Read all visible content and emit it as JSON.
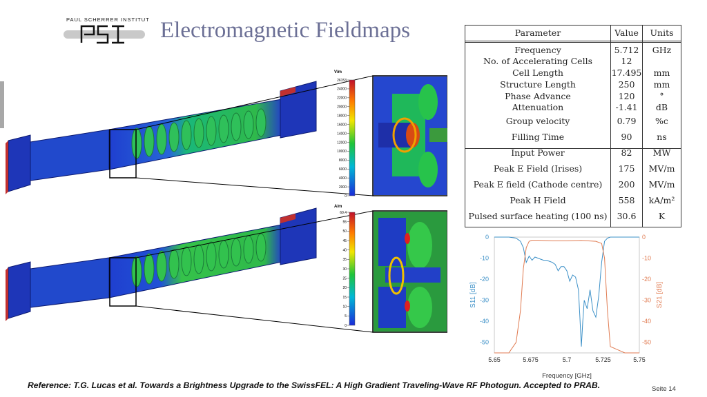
{
  "logo": {
    "institute": "PAUL SCHERRER INSTITUT",
    "mark": "PSI"
  },
  "title": "Electromagnetic Fieldmaps",
  "table": {
    "headers": {
      "parameter": "Parameter",
      "value": "Value",
      "units": "Units"
    },
    "rows": [
      {
        "parameter": "Frequency",
        "value": "5.712",
        "units": "GHz"
      },
      {
        "parameter": "No. of Accelerating Cells",
        "value": "12",
        "units": ""
      },
      {
        "parameter": "Cell Length",
        "value": "17.495",
        "units": "mm"
      },
      {
        "parameter": "Structure Length",
        "value": "250",
        "units": "mm"
      },
      {
        "parameter": "Phase Advance",
        "value": "120",
        "units": "°"
      },
      {
        "parameter": "Attenuation",
        "value": "-1.41",
        "units": "dB"
      },
      {
        "parameter": "Group velocity",
        "value": "0.79",
        "units": "%c"
      },
      {
        "parameter": "Filling Time",
        "value": "90",
        "units": "ns"
      },
      {
        "parameter": "Input Power",
        "value": "82",
        "units": "MW"
      },
      {
        "parameter": "Peak E Field (Irises)",
        "value": "175",
        "units": "MV/m"
      },
      {
        "parameter": "Peak E field (Cathode centre)",
        "value": "200",
        "units": "MV/m"
      },
      {
        "parameter": "Peak H Field",
        "value": "558",
        "units": "kA/m²"
      },
      {
        "parameter": "Pulsed surface heating (100 ns)",
        "value": "30.6",
        "units": "K"
      }
    ]
  },
  "efield_colorbar": {
    "unit": "V/m",
    "ticks": [
      "26153",
      "24000",
      "22000",
      "20000",
      "18000",
      "16000",
      "14000",
      "12000",
      "10000",
      "8000",
      "6000",
      "4000",
      "2000",
      "0"
    ]
  },
  "hfield_colorbar": {
    "unit": "A/m",
    "ticks": [
      "60.4",
      "55",
      "50",
      "45",
      "40",
      "35",
      "30",
      "25",
      "20",
      "15",
      "10",
      "5",
      "0"
    ]
  },
  "chart_data": {
    "type": "line",
    "title": "",
    "xlabel": "Frequency [GHz]",
    "ylabel_left": "S11 [dB]",
    "ylabel_right": "S21 [dB]",
    "xlim": [
      5.65,
      5.75
    ],
    "ylim": [
      -55,
      0
    ],
    "x_ticks": [
      "5.65",
      "5.675",
      "5.7",
      "5.725",
      "5.75"
    ],
    "y_ticks": [
      "0",
      "-10",
      "-20",
      "-30",
      "-40",
      "-50"
    ],
    "series": [
      {
        "name": "S11",
        "color": "#3a8fc7",
        "x": [
          5.65,
          5.66,
          5.665,
          5.668,
          5.67,
          5.672,
          5.674,
          5.676,
          5.678,
          5.68,
          5.682,
          5.684,
          5.686,
          5.688,
          5.69,
          5.692,
          5.694,
          5.696,
          5.698,
          5.7,
          5.702,
          5.704,
          5.706,
          5.708,
          5.709,
          5.71,
          5.711,
          5.712,
          5.714,
          5.716,
          5.718,
          5.72,
          5.721,
          5.722,
          5.724,
          5.726,
          5.728,
          5.73,
          5.74,
          5.75
        ],
        "values": [
          0,
          0,
          -0.5,
          -2,
          -5,
          -12,
          -9,
          -11,
          -9.5,
          -10,
          -10.5,
          -11,
          -11,
          -11.5,
          -12,
          -13,
          -16,
          -14,
          -14,
          -16,
          -21,
          -18,
          -19,
          -25,
          -38,
          -52,
          -40,
          -30,
          -34,
          -25,
          -35,
          -38,
          -33,
          -28,
          -12,
          -2,
          -0.5,
          0,
          0,
          0
        ]
      },
      {
        "name": "S21",
        "color": "#e07a50",
        "x": [
          5.65,
          5.66,
          5.665,
          5.668,
          5.67,
          5.672,
          5.674,
          5.676,
          5.68,
          5.69,
          5.7,
          5.71,
          5.72,
          5.724,
          5.726,
          5.728,
          5.73,
          5.74,
          5.75
        ],
        "values": [
          -55,
          -55,
          -50,
          -35,
          -15,
          -5,
          -2,
          -1.5,
          -1.5,
          -1.8,
          -1.8,
          -1.6,
          -2,
          -3,
          -10,
          -35,
          -52,
          -55,
          -55
        ]
      }
    ]
  },
  "footer": {
    "reference": "Reference: T.G. Lucas et al. Towards a Brightness Upgrade to the SwissFEL: A High Gradient Traveling-Wave RF Photogun. Accepted to PRAB.",
    "page": "Seite 14"
  }
}
